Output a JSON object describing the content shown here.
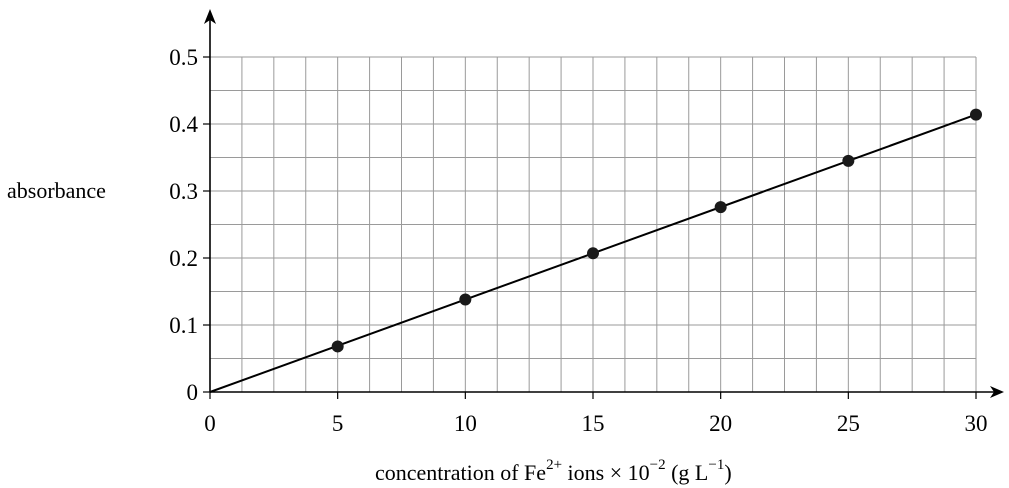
{
  "chart_data": {
    "type": "scatter",
    "title": "",
    "ylabel": "absorbance",
    "xlabel": {
      "prefix": "concentration of Fe",
      "sup1": "2+",
      "mid": " ions × 10",
      "sup2": "−2",
      "suffix1": " (g L",
      "sup3": "−1",
      "suffix2": ")"
    },
    "xlim": [
      0,
      30
    ],
    "ylim": [
      0,
      0.5
    ],
    "x_ticks": [
      0,
      5,
      10,
      15,
      20,
      25,
      30
    ],
    "x_tick_labels": [
      "0",
      "5",
      "10",
      "15",
      "20",
      "25",
      "30"
    ],
    "y_ticks": [
      0,
      0.1,
      0.2,
      0.3,
      0.4,
      0.5
    ],
    "y_tick_labels": [
      "0",
      "0.1",
      "0.2",
      "0.3",
      "0.4",
      "0.5"
    ],
    "x_minor_step": 1.25,
    "y_minor_step": 0.05,
    "grid": true,
    "points": [
      {
        "x": 5,
        "y": 0.068
      },
      {
        "x": 10,
        "y": 0.138
      },
      {
        "x": 15,
        "y": 0.207
      },
      {
        "x": 20,
        "y": 0.276
      },
      {
        "x": 25,
        "y": 0.345
      },
      {
        "x": 30,
        "y": 0.414
      }
    ],
    "fit_line": {
      "x0": 0,
      "y0": 0,
      "x1": 30,
      "y1": 0.414
    },
    "colors": {
      "grid": "#9a9a9a",
      "axis": "#000000",
      "marker": "#1a1a1a"
    }
  }
}
